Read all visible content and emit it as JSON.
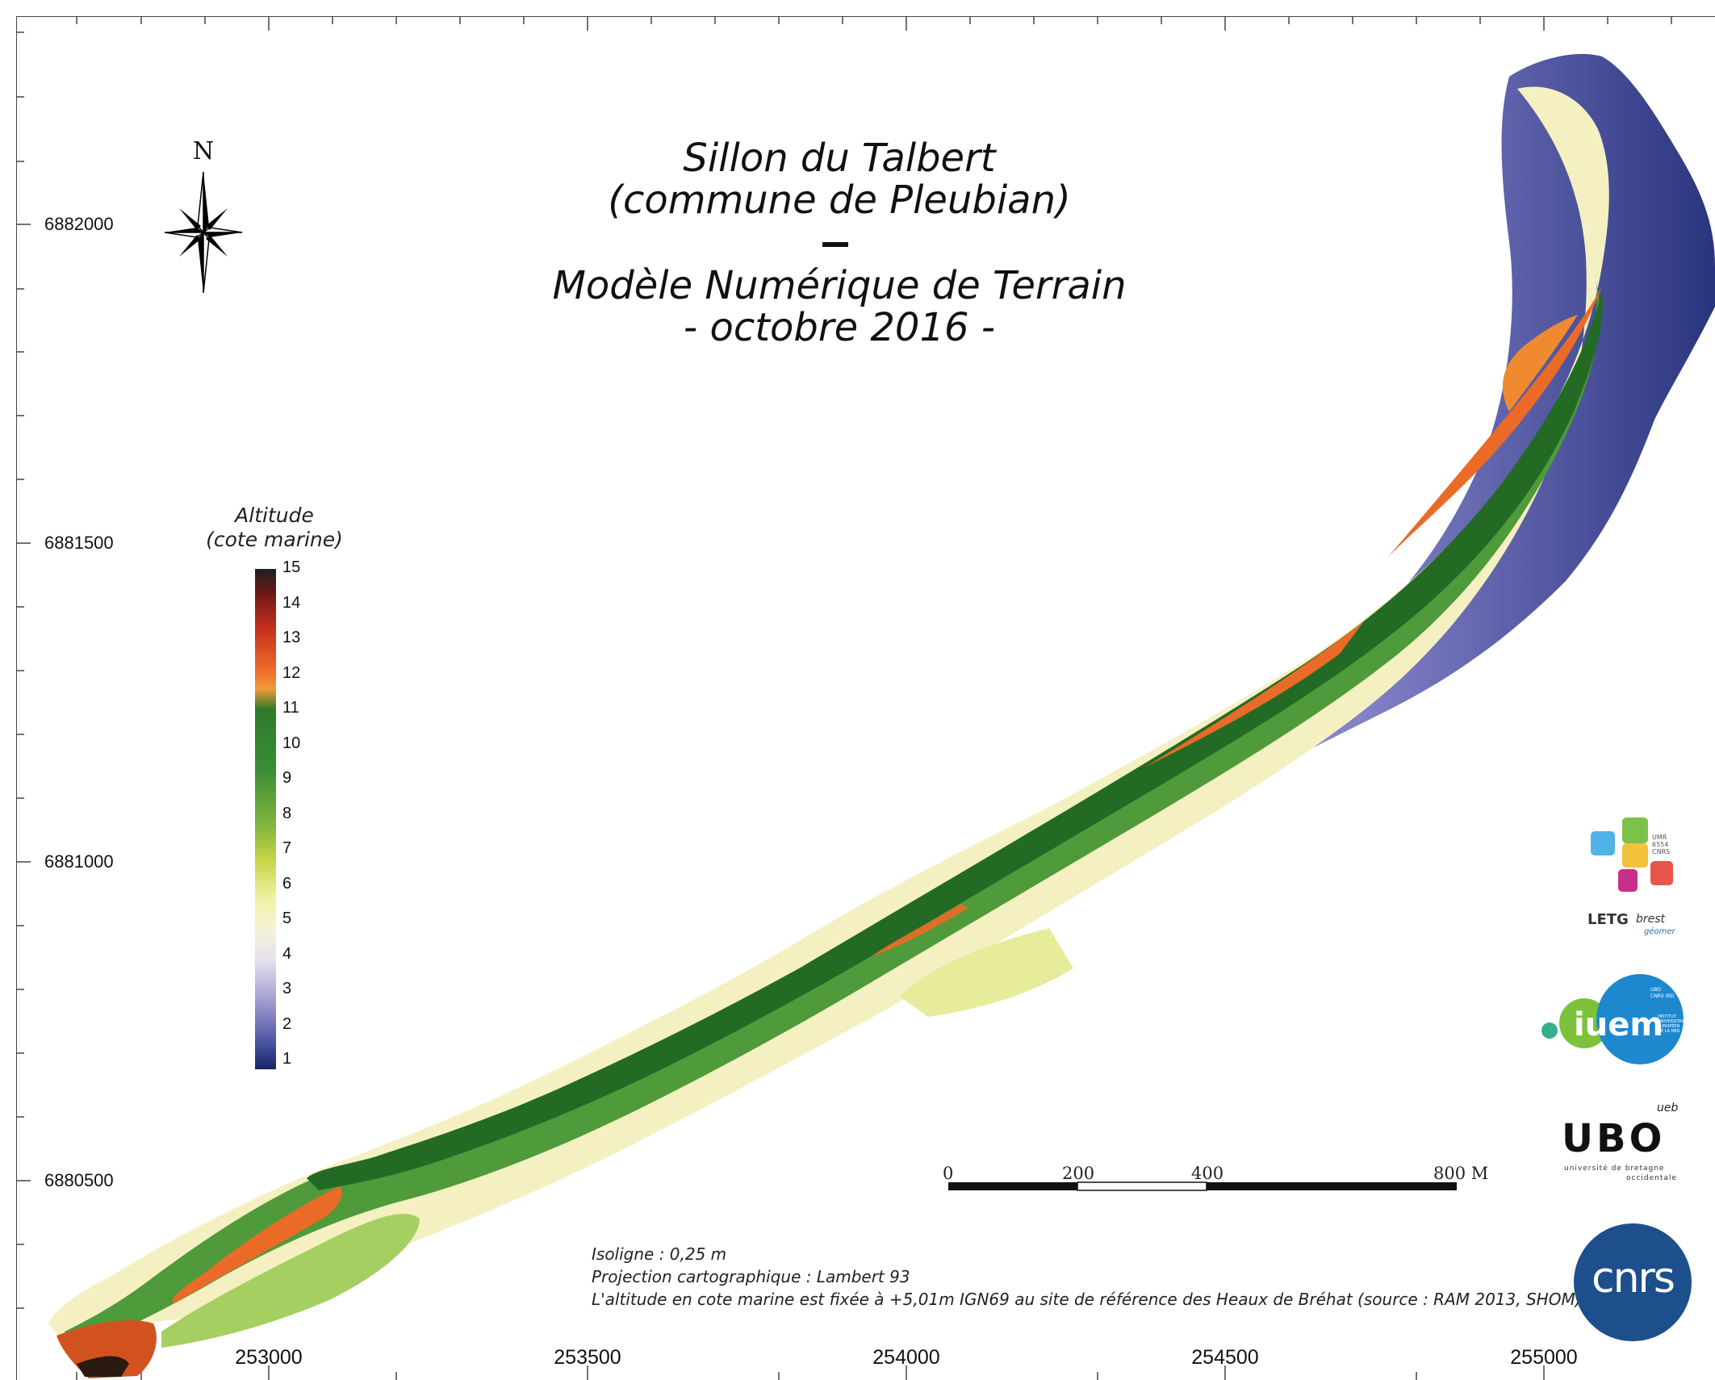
{
  "title": {
    "line1": "Sillon du Talbert",
    "line2": "(commune de Pleubian)",
    "line3": "Modèle Numérique de Terrain",
    "line4": "- octobre 2016 -"
  },
  "north_arrow": {
    "label": "N",
    "icon": "compass-rose-icon"
  },
  "grid": {
    "y_labels": [
      "6882000",
      "6881500",
      "6881000",
      "6880500"
    ],
    "x_labels": [
      "253000",
      "253500",
      "254000",
      "254500",
      "255000"
    ]
  },
  "legend": {
    "title_line1": "Altitude",
    "title_line2": "(cote marine)",
    "values": [
      "15",
      "14",
      "13",
      "12",
      "11",
      "10",
      "9",
      "8",
      "7",
      "6",
      "5",
      "4",
      "3",
      "2",
      "1"
    ]
  },
  "scale_bar": {
    "labels": [
      "0",
      "200",
      "400",
      "800 M"
    ]
  },
  "notes": {
    "line1": "Isoligne : 0,25 m",
    "line2": "Projection cartographique : Lambert 93",
    "line3": "L'altitude en cote marine est fixée à +5,01m IGN69 au site de référence des Heaux de Bréhat (source : RAM 2013, SHOM)"
  },
  "logos": {
    "letg": {
      "name": "LETG",
      "suffix": "brest",
      "sub": "géomer",
      "umr": "UMR 6554 CNRS"
    },
    "iuem": {
      "name": "iuem",
      "sub": "INSTITUT UNIVERSITAIRE EUROPÉEN DE LA MER",
      "tag": "UBO CNRS IRD"
    },
    "ubo": {
      "name": "UBO",
      "sub_line1": "université de bretagne",
      "sub_line2": "occidentale",
      "badge": "ueb"
    },
    "cnrs": {
      "name": "cnrs"
    }
  },
  "colors": {
    "water_deep": "#1a2466",
    "beach_low": "#f6f3d6",
    "ridge_green": "#2d7a2a",
    "crest_orange": "#ee6a2a",
    "cnrs_blue": "#1d4f8c"
  }
}
